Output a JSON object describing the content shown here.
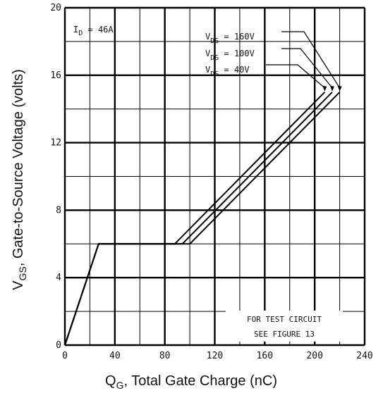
{
  "chart_data": {
    "type": "line",
    "xlabel": {
      "main": "Q",
      "sub": "G",
      "rest": ", Total Gate Charge (nC)"
    },
    "ylabel": {
      "main": "V",
      "sub": "GS",
      "rest": ", Gate-to-Source Voltage (volts)"
    },
    "xlim": [
      0,
      240
    ],
    "ylim": [
      0,
      20
    ],
    "xticks": [
      0,
      40,
      80,
      120,
      160,
      200,
      240
    ],
    "yticks": [
      0,
      4,
      8,
      12,
      16,
      20
    ],
    "grid": true,
    "annotation_id": {
      "main": "I",
      "sub": "D",
      "rest": " = 46A"
    },
    "note_lines": [
      "FOR TEST CIRCUIT",
      "SEE FIGURE 13"
    ],
    "series": [
      {
        "label_main": "V",
        "label_sub": "DS",
        "label_rest": " = 160V",
        "x": [
          0,
          27,
          100,
          220
        ],
        "y": [
          0,
          6,
          6,
          15
        ]
      },
      {
        "label_main": "V",
        "label_sub": "DS",
        "label_rest": " = 100V",
        "x": [
          0,
          27,
          94,
          214
        ],
        "y": [
          0,
          6,
          6,
          15
        ]
      },
      {
        "label_main": "V",
        "label_sub": "DS",
        "label_rest": " =  40V",
        "x": [
          0,
          27,
          88,
          208
        ],
        "y": [
          0,
          6,
          6,
          15
        ]
      }
    ]
  }
}
